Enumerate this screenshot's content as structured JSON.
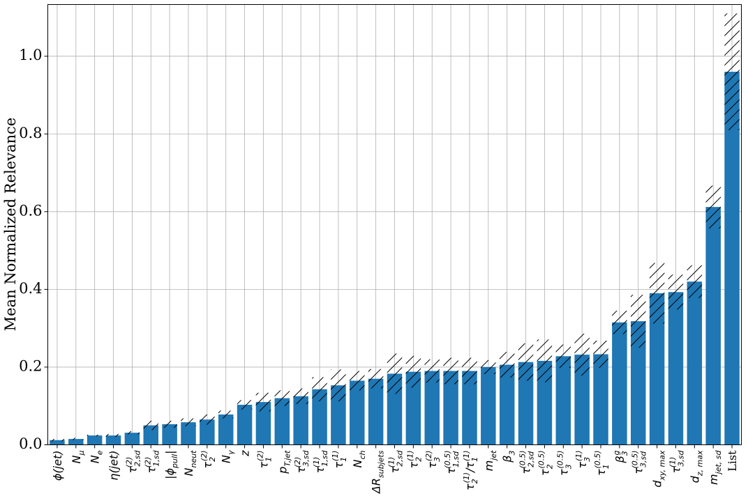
{
  "chart_data": {
    "type": "bar",
    "ylabel": "Mean Normalized Relevance",
    "color": "#1f77b4",
    "grid": true,
    "ylim": [
      0,
      1.133
    ],
    "yticks": [
      {
        "value": 0,
        "label": "0.0"
      },
      {
        "value": 0.2,
        "label": "0.2"
      },
      {
        "value": 0.4,
        "label": "0.4"
      },
      {
        "value": 0.6,
        "label": "0.6"
      },
      {
        "value": 0.8,
        "label": "0.8"
      },
      {
        "value": 1,
        "label": "1.0"
      }
    ],
    "categories": [
      [
        {
          "text": "ϕ(jet)"
        }
      ],
      [
        {
          "text": "N"
        },
        {
          "text": "μ",
          "pos": "sub"
        }
      ],
      [
        {
          "text": "N"
        },
        {
          "text": "e",
          "pos": "sub"
        }
      ],
      [
        {
          "text": "η(jet)"
        }
      ],
      [
        {
          "text": "τ"
        },
        {
          "text": "2,sd",
          "pos": "sub"
        },
        {
          "text": "(2)",
          "pos": "sup"
        }
      ],
      [
        {
          "text": "τ"
        },
        {
          "text": "1,sd",
          "pos": "sub"
        },
        {
          "text": "(2)",
          "pos": "sup"
        }
      ],
      [
        {
          "text": "|ϕ"
        },
        {
          "text": "pull",
          "pos": "sub"
        },
        {
          "text": "|"
        }
      ],
      [
        {
          "text": "N"
        },
        {
          "text": "neut",
          "pos": "sub"
        }
      ],
      [
        {
          "text": "τ"
        },
        {
          "text": "2",
          "pos": "sub"
        },
        {
          "text": "(2)",
          "pos": "sup"
        }
      ],
      [
        {
          "text": "N"
        },
        {
          "text": "γ",
          "pos": "sub"
        }
      ],
      [
        {
          "text": "z"
        }
      ],
      [
        {
          "text": "τ"
        },
        {
          "text": "1",
          "pos": "sub"
        },
        {
          "text": "(2)",
          "pos": "sup"
        }
      ],
      [
        {
          "text": "p"
        },
        {
          "text": "T,jet",
          "pos": "sub"
        }
      ],
      [
        {
          "text": "τ"
        },
        {
          "text": "3,sd",
          "pos": "sub"
        },
        {
          "text": "(2)",
          "pos": "sup"
        }
      ],
      [
        {
          "text": "τ"
        },
        {
          "text": "1,sd",
          "pos": "sub"
        },
        {
          "text": "(1)",
          "pos": "sup"
        }
      ],
      [
        {
          "text": "τ"
        },
        {
          "text": "1",
          "pos": "sub"
        },
        {
          "text": "(1)",
          "pos": "sup"
        }
      ],
      [
        {
          "text": "N"
        },
        {
          "text": "ch",
          "pos": "sub"
        }
      ],
      [
        {
          "text": "ΔR"
        },
        {
          "text": "subjets",
          "pos": "sub"
        }
      ],
      [
        {
          "text": "τ"
        },
        {
          "text": "2,sd",
          "pos": "sub"
        },
        {
          "text": "(1)",
          "pos": "sup"
        }
      ],
      [
        {
          "text": "τ"
        },
        {
          "text": "2",
          "pos": "sub"
        },
        {
          "text": "(1)",
          "pos": "sup"
        }
      ],
      [
        {
          "text": "τ"
        },
        {
          "text": "3",
          "pos": "sub"
        },
        {
          "text": "(2)",
          "pos": "sup"
        }
      ],
      [
        {
          "text": "τ"
        },
        {
          "text": "1,sd",
          "pos": "sub"
        },
        {
          "text": "(0.5)",
          "pos": "sup"
        }
      ],
      [
        {
          "text": "τ"
        },
        {
          "text": "2",
          "pos": "sub"
        },
        {
          "text": "(1)",
          "pos": "sup"
        },
        {
          "text": "/τ"
        },
        {
          "text": "1",
          "pos": "sub"
        },
        {
          "text": "(1)",
          "pos": "sup"
        }
      ],
      [
        {
          "text": "m"
        },
        {
          "text": "jet",
          "pos": "sub"
        }
      ],
      [
        {
          "text": "β"
        },
        {
          "text": "3",
          "pos": "sub"
        }
      ],
      [
        {
          "text": "τ"
        },
        {
          "text": "2,sd",
          "pos": "sub"
        },
        {
          "text": "(0.5)",
          "pos": "sup"
        }
      ],
      [
        {
          "text": "τ"
        },
        {
          "text": "2",
          "pos": "sub"
        },
        {
          "text": "(0.5)",
          "pos": "sup"
        }
      ],
      [
        {
          "text": "τ"
        },
        {
          "text": "3",
          "pos": "sub"
        },
        {
          "text": "(0.5)",
          "pos": "sup"
        }
      ],
      [
        {
          "text": "τ"
        },
        {
          "text": "3",
          "pos": "sub"
        },
        {
          "text": "(1)",
          "pos": "sup"
        }
      ],
      [
        {
          "text": "τ"
        },
        {
          "text": "1",
          "pos": "sub"
        },
        {
          "text": "(0.5)",
          "pos": "sup"
        }
      ],
      [
        {
          "text": "β"
        },
        {
          "text": "3",
          "pos": "sub"
        },
        {
          "text": "g",
          "pos": "sup"
        }
      ],
      [
        {
          "text": "τ"
        },
        {
          "text": "3,sd",
          "pos": "sub"
        },
        {
          "text": "(0.5)",
          "pos": "sup"
        }
      ],
      [
        {
          "text": "d"
        },
        {
          "text": "xy, max",
          "pos": "sub"
        }
      ],
      [
        {
          "text": "τ"
        },
        {
          "text": "3,sd",
          "pos": "sub"
        },
        {
          "text": "(1)",
          "pos": "sup"
        }
      ],
      [
        {
          "text": "d"
        },
        {
          "text": "z, max",
          "pos": "sub"
        }
      ],
      [
        {
          "text": "m"
        },
        {
          "text": "jet, sd",
          "pos": "sub"
        }
      ],
      [
        {
          "text": "List",
          "pos": "roman"
        }
      ]
    ],
    "values": [
      0.012,
      0.015,
      0.024,
      0.024,
      0.031,
      0.05,
      0.053,
      0.058,
      0.065,
      0.078,
      0.103,
      0.11,
      0.12,
      0.125,
      0.143,
      0.153,
      0.165,
      0.17,
      0.183,
      0.188,
      0.19,
      0.19,
      0.19,
      0.2,
      0.206,
      0.213,
      0.216,
      0.228,
      0.232,
      0.233,
      0.315,
      0.318,
      0.39,
      0.393,
      0.42,
      0.612,
      0.96
    ],
    "errors": [
      0.003,
      0.003,
      0.002,
      0.004,
      0.004,
      0.012,
      0.009,
      0.01,
      0.013,
      0.01,
      0.012,
      0.024,
      0.02,
      0.02,
      0.031,
      0.041,
      0.025,
      0.025,
      0.052,
      0.041,
      0.03,
      0.034,
      0.034,
      0.018,
      0.033,
      0.048,
      0.055,
      0.03,
      0.054,
      0.035,
      0.03,
      0.068,
      0.078,
      0.045,
      0.042,
      0.055,
      0.15
    ]
  }
}
